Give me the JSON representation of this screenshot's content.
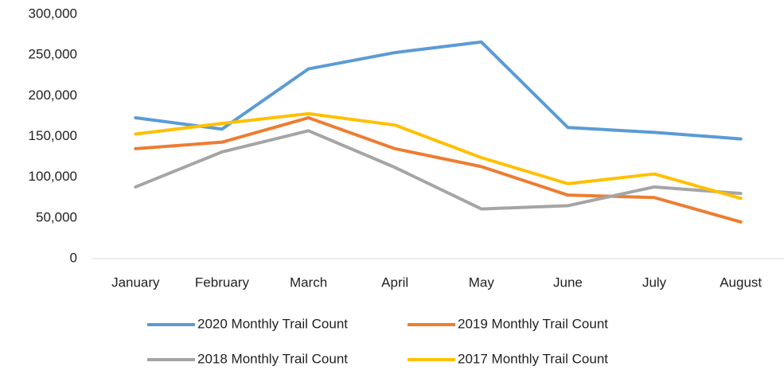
{
  "chart_data": {
    "type": "line",
    "categories": [
      "January",
      "February",
      "March",
      "April",
      "May",
      "June",
      "July",
      "August"
    ],
    "series": [
      {
        "name": "2020 Monthly Trail Count",
        "color": "#5b9bd5",
        "values": [
          173000,
          159000,
          233000,
          253000,
          266000,
          161000,
          155000,
          147000
        ]
      },
      {
        "name": "2019 Monthly Trail Count",
        "color": "#ed7d31",
        "values": [
          135000,
          143000,
          173000,
          135000,
          113000,
          78000,
          75000,
          45000
        ]
      },
      {
        "name": "2018 Monthly Trail Count",
        "color": "#a5a5a5",
        "values": [
          88000,
          131000,
          157000,
          112000,
          61000,
          65000,
          88000,
          80000
        ]
      },
      {
        "name": "2017 Monthly Trail Count",
        "color": "#ffc000",
        "values": [
          153000,
          166000,
          178000,
          164000,
          124000,
          92000,
          104000,
          74000
        ]
      }
    ],
    "ylim": [
      0,
      300000
    ],
    "yticks": [
      0,
      {
        "value": 50000,
        "label": "50,000"
      },
      {
        "value": 100000,
        "label": "100,000"
      },
      {
        "value": 150000,
        "label": "150,000"
      },
      {
        "value": 200000,
        "label": "200,000"
      },
      {
        "value": 250000,
        "label": "250,000"
      },
      {
        "value": 300000,
        "label": "300,000"
      }
    ],
    "grid": false,
    "legend": "bottom"
  }
}
